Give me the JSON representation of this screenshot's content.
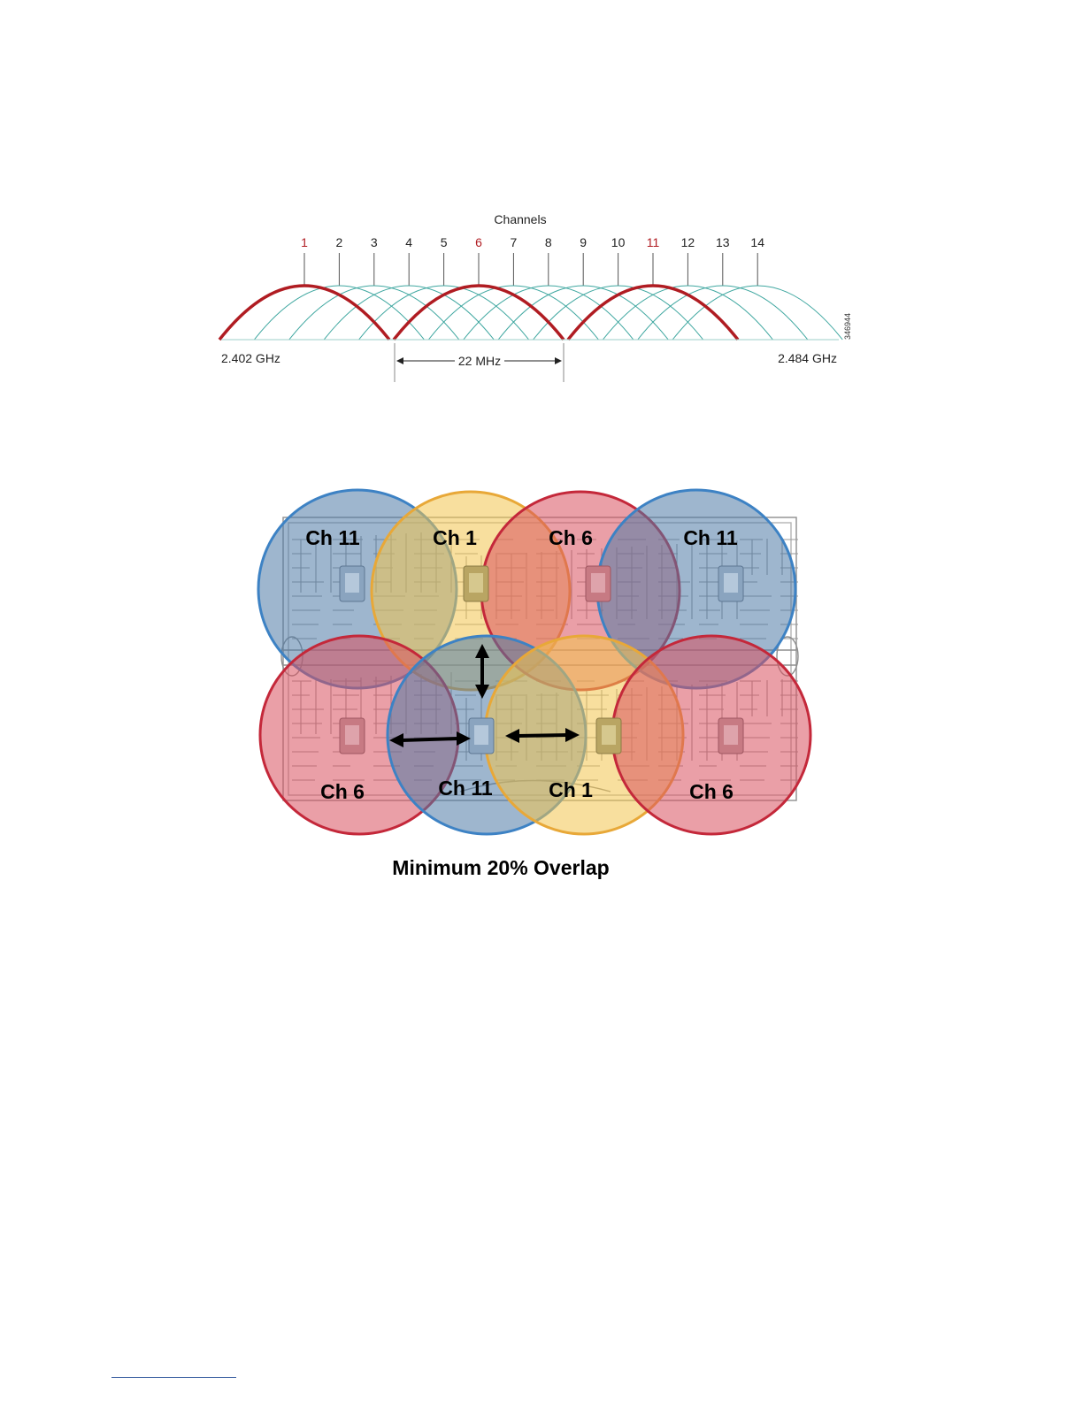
{
  "spectrum": {
    "title": "Channels",
    "channels": [
      {
        "label": "1",
        "highlight": true
      },
      {
        "label": "2",
        "highlight": false
      },
      {
        "label": "3",
        "highlight": false
      },
      {
        "label": "4",
        "highlight": false
      },
      {
        "label": "5",
        "highlight": false
      },
      {
        "label": "6",
        "highlight": true
      },
      {
        "label": "7",
        "highlight": false
      },
      {
        "label": "8",
        "highlight": false
      },
      {
        "label": "9",
        "highlight": false
      },
      {
        "label": "10",
        "highlight": false
      },
      {
        "label": "11",
        "highlight": true
      },
      {
        "label": "12",
        "highlight": false
      },
      {
        "label": "13",
        "highlight": false
      },
      {
        "label": "14",
        "highlight": false
      }
    ],
    "freq_low": "2.402 GHz",
    "freq_high": "2.484 GHz",
    "bandwidth": "22 MHz",
    "figure_id": "346944",
    "colors": {
      "highlight": "#b01c22",
      "other": "#3fa7a0",
      "text": "#222222"
    }
  },
  "coverage": {
    "cells": [
      {
        "label": "Ch 11",
        "color": "blue"
      },
      {
        "label": "Ch 1",
        "color": "yellow"
      },
      {
        "label": "Ch 6",
        "color": "red"
      },
      {
        "label": "Ch 11",
        "color": "blue"
      },
      {
        "label": "Ch 6",
        "color": "red"
      },
      {
        "label": "Ch 11",
        "color": "blue"
      },
      {
        "label": "Ch 1",
        "color": "yellow"
      },
      {
        "label": "Ch 6",
        "color": "red"
      }
    ],
    "caption": "Minimum 20% Overlap",
    "palette": {
      "blue": {
        "fill": "#4f7aa6",
        "stroke": "#3d82c4"
      },
      "yellow": {
        "fill": "#f2c44e",
        "stroke": "#e8a838"
      },
      "red": {
        "fill": "#d9515f",
        "stroke": "#c4283a"
      }
    }
  }
}
